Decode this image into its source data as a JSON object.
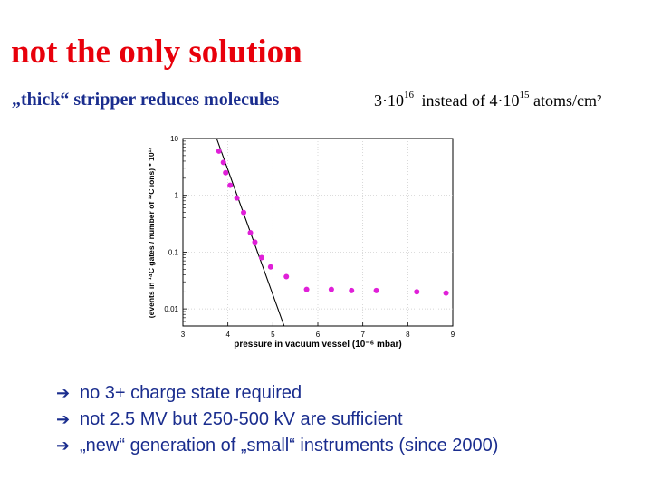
{
  "slide": {
    "title": "not the only solution",
    "subtitle": "„thick“ stripper reduces molecules",
    "thickness": {
      "new_prefix": "3·10",
      "new_exp": "16",
      "middle": "instead of 4·10",
      "old_exp": "15",
      "unit": "atoms/cm²"
    }
  },
  "chart_data": {
    "type": "scatter",
    "title": "",
    "xlabel": "pressure in vacuum vessel (10⁻⁶ mbar)",
    "ylabel": "(events in ¹⁴C gates / number of ¹²C ions) * 10¹²",
    "xlim": [
      3,
      9
    ],
    "ylim": [
      0.005,
      10
    ],
    "yscale": "log",
    "x_ticks": [
      "3",
      "4",
      "5",
      "6",
      "7",
      "8",
      "9"
    ],
    "y_ticks": [
      "10",
      "1",
      "0.1",
      "0.01"
    ],
    "marker_color": "#e020d8",
    "points": [
      {
        "x": 3.8,
        "y": 6.0
      },
      {
        "x": 3.9,
        "y": 3.8
      },
      {
        "x": 3.95,
        "y": 2.5
      },
      {
        "x": 4.05,
        "y": 1.5
      },
      {
        "x": 4.2,
        "y": 0.9
      },
      {
        "x": 4.35,
        "y": 0.5
      },
      {
        "x": 4.5,
        "y": 0.22
      },
      {
        "x": 4.6,
        "y": 0.15
      },
      {
        "x": 4.75,
        "y": 0.08
      },
      {
        "x": 4.95,
        "y": 0.055
      },
      {
        "x": 5.3,
        "y": 0.037
      },
      {
        "x": 5.75,
        "y": 0.022
      },
      {
        "x": 6.3,
        "y": 0.022
      },
      {
        "x": 6.75,
        "y": 0.021
      },
      {
        "x": 7.3,
        "y": 0.021
      },
      {
        "x": 8.2,
        "y": 0.02
      },
      {
        "x": 8.85,
        "y": 0.019
      }
    ],
    "fit_line": {
      "x": [
        3.75,
        5.25
      ],
      "y": [
        10,
        0.005
      ]
    }
  },
  "bullets": [
    "no 3+ charge state required",
    "not 2.5 MV but 250-500 kV are sufficient",
    "„new“ generation of „small“ instruments  (since 2000)"
  ]
}
